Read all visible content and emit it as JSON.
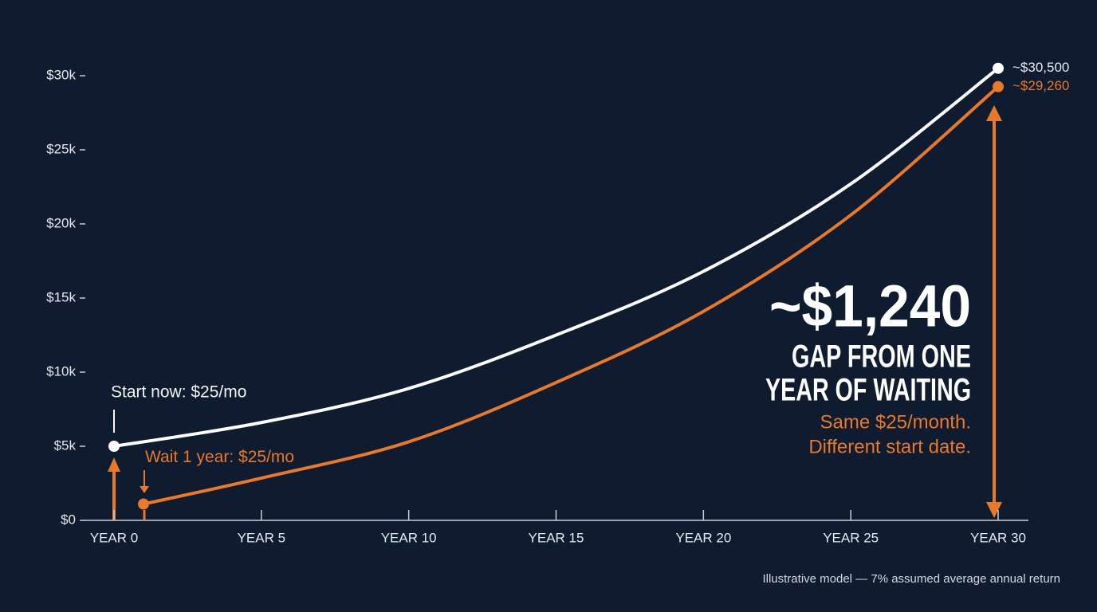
{
  "chart_data": {
    "type": "line",
    "xlim": [
      0,
      30
    ],
    "ylim": [
      0,
      30000
    ],
    "xticks": [
      {
        "value": 0,
        "label": "YEAR 0"
      },
      {
        "value": 5,
        "label": "YEAR 5"
      },
      {
        "value": 10,
        "label": "YEAR 10"
      },
      {
        "value": 15,
        "label": "YEAR 15"
      },
      {
        "value": 20,
        "label": "YEAR 20"
      },
      {
        "value": 25,
        "label": "YEAR 25"
      },
      {
        "value": 30,
        "label": "YEAR 30"
      }
    ],
    "yticks": [
      {
        "value": 0,
        "label": "$0"
      },
      {
        "value": 5000,
        "label": "$5k"
      },
      {
        "value": 10000,
        "label": "$10k"
      },
      {
        "value": 15000,
        "label": "$15k"
      },
      {
        "value": 20000,
        "label": "$20k"
      },
      {
        "value": 25000,
        "label": "$25k"
      },
      {
        "value": 30000,
        "label": "$30k"
      }
    ],
    "series": [
      {
        "name": "Start now: $25/mo",
        "color": "#ffffff",
        "x": [
          0,
          5,
          10,
          15,
          20,
          25,
          30
        ],
        "values": [
          5000,
          6600,
          8900,
          12500,
          16800,
          22700,
          30500
        ],
        "value_labels": [
          null,
          null,
          null,
          null,
          null,
          null,
          "~$30,500"
        ]
      },
      {
        "name": "Wait 1 year: $25/mo",
        "color": "#e8782a",
        "x": [
          1,
          5,
          10,
          15,
          20,
          25,
          30
        ],
        "values": [
          1100,
          2850,
          5300,
          9300,
          14100,
          20600,
          29260
        ],
        "value_labels": [
          null,
          null,
          null,
          null,
          null,
          null,
          "~$29,260"
        ]
      }
    ],
    "headline": "~$1,240",
    "headline_lines": [
      "GAP FROM ONE",
      "YEAR OF WAITING"
    ],
    "subtext_lines": [
      "Same $25/month.",
      "Different start date."
    ],
    "footnote": "Illustrative model — 7% assumed average annual return"
  }
}
